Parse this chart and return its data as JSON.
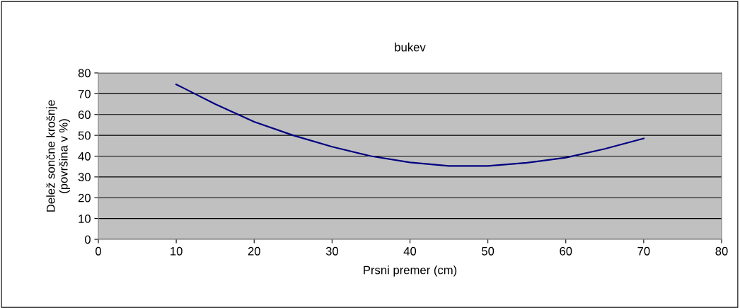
{
  "chart_data": {
    "type": "line",
    "title": "bukev",
    "xlabel": "Prsni premer (cm)",
    "ylabel": "Delež sončne krošnje\n(površina v %)",
    "series": [
      {
        "color": "#000080",
        "x": [
          10,
          15,
          20,
          25,
          30,
          35,
          40,
          45,
          50,
          55,
          60,
          65,
          70
        ],
        "values": [
          74.5,
          65,
          56.5,
          50,
          44.5,
          40,
          37,
          35.3,
          35.3,
          36.8,
          39.3,
          43.5,
          48.5
        ]
      }
    ],
    "xlim": [
      0,
      80
    ],
    "xticks": [
      0,
      10,
      20,
      30,
      40,
      50,
      60,
      70,
      80
    ],
    "ylim": [
      0,
      80
    ],
    "yticks": [
      0,
      10,
      20,
      30,
      40,
      50,
      60,
      70,
      80
    ],
    "grid": "y",
    "marker": "none",
    "line_style": "solid"
  }
}
